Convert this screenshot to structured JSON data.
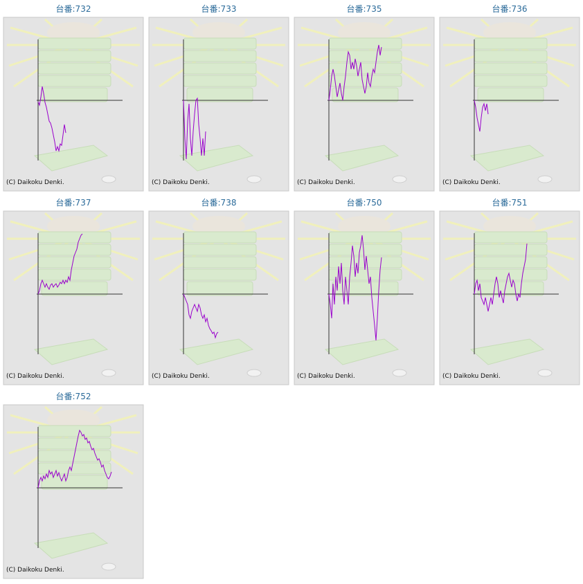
{
  "chart_data": [
    {
      "type": "line",
      "title": "台番:732",
      "copyright": "(C) Daikoku Denki.",
      "color": "#9900cc",
      "xlim": [
        0,
        61
      ],
      "ylim": [
        -87,
        88
      ],
      "values": [
        -2,
        -7,
        5,
        20,
        10,
        -3,
        -10,
        -20,
        -30,
        -33,
        -40,
        -50,
        -60,
        -73,
        -67,
        -73,
        -63,
        -65,
        -50,
        -35,
        -47
      ]
    },
    {
      "type": "line",
      "title": "台番:733",
      "copyright": "(C) Daikoku Denki.",
      "color": "#9900cc",
      "xlim": [
        0,
        61
      ],
      "ylim": [
        -87,
        88
      ],
      "values": [
        0,
        -55,
        -85,
        -30,
        -5,
        -55,
        -80,
        -45,
        -20,
        0,
        3,
        -35,
        -55,
        -80,
        -55,
        -80,
        -45
      ]
    },
    {
      "type": "line",
      "title": "台番:735",
      "copyright": "(C) Daikoku Denki.",
      "color": "#9900cc",
      "xlim": [
        0,
        61
      ],
      "ylim": [
        -87,
        88
      ],
      "values": [
        0,
        15,
        35,
        45,
        35,
        20,
        5,
        15,
        25,
        10,
        0,
        20,
        35,
        55,
        70,
        65,
        45,
        55,
        45,
        60,
        50,
        35,
        45,
        55,
        30,
        20,
        10,
        20,
        40,
        25,
        20,
        35,
        45,
        40,
        55,
        70,
        80,
        65,
        77
      ]
    },
    {
      "type": "line",
      "title": "台番:736",
      "copyright": "(C) Daikoku Denki.",
      "color": "#9900cc",
      "xlim": [
        0,
        61
      ],
      "ylim": [
        -87,
        88
      ],
      "values": [
        0,
        -10,
        -25,
        -35,
        -45,
        -25,
        -10,
        -5,
        -15,
        -5,
        -20
      ]
    },
    {
      "type": "line",
      "title": "台番:737",
      "copyright": "(C) Daikoku Denki.",
      "color": "#9900cc",
      "xlim": [
        0,
        61
      ],
      "ylim": [
        -87,
        88
      ],
      "values": [
        0,
        5,
        15,
        20,
        15,
        10,
        15,
        10,
        7,
        13,
        15,
        10,
        13,
        15,
        10,
        13,
        17,
        15,
        20,
        15,
        20,
        17,
        25,
        20,
        35,
        45,
        55,
        60,
        65,
        75,
        80,
        85,
        87
      ]
    },
    {
      "type": "line",
      "title": "台番:738",
      "copyright": "(C) Daikoku Denki.",
      "color": "#9900cc",
      "xlim": [
        0,
        61
      ],
      "ylim": [
        -87,
        88
      ],
      "values": [
        0,
        -5,
        -10,
        -15,
        -30,
        -35,
        -25,
        -20,
        -15,
        -20,
        -25,
        -15,
        -20,
        -30,
        -35,
        -30,
        -40,
        -35,
        -45,
        -50,
        -53,
        -57,
        -55,
        -63,
        -57,
        -55
      ]
    },
    {
      "type": "line",
      "title": "台番:750",
      "copyright": "(C) Daikoku Denki.",
      "color": "#9900cc",
      "xlim": [
        0,
        61
      ],
      "ylim": [
        -87,
        88
      ],
      "values": [
        0,
        -15,
        -35,
        15,
        -15,
        25,
        5,
        40,
        15,
        45,
        5,
        -15,
        25,
        5,
        -15,
        25,
        45,
        70,
        55,
        25,
        45,
        30,
        60,
        70,
        85,
        65,
        35,
        55,
        35,
        15,
        25,
        -5,
        -25,
        -45,
        -67,
        -35,
        5,
        35,
        53
      ]
    },
    {
      "type": "line",
      "title": "台番:751",
      "copyright": "(C) Daikoku Denki.",
      "color": "#9900cc",
      "xlim": [
        0,
        61
      ],
      "ylim": [
        -87,
        88
      ],
      "values": [
        0,
        15,
        20,
        5,
        15,
        -5,
        -10,
        -15,
        -5,
        -15,
        -25,
        -15,
        -5,
        -15,
        0,
        15,
        25,
        15,
        -5,
        5,
        -5,
        -13,
        5,
        15,
        25,
        30,
        20,
        10,
        20,
        15,
        0,
        -10,
        0,
        -5,
        15,
        30,
        40,
        50,
        73
      ]
    },
    {
      "type": "line",
      "title": "台番:752",
      "copyright": "(C) Daikoku Denki.",
      "color": "#9900cc",
      "xlim": [
        0,
        61
      ],
      "ylim": [
        -87,
        88
      ],
      "values": [
        0,
        10,
        15,
        10,
        17,
        13,
        20,
        15,
        25,
        20,
        23,
        15,
        20,
        25,
        17,
        22,
        15,
        10,
        15,
        20,
        10,
        15,
        25,
        30,
        25,
        35,
        45,
        55,
        65,
        75,
        83,
        80,
        75,
        77,
        70,
        72,
        65,
        67,
        60,
        55,
        57,
        50,
        45,
        40,
        42,
        37,
        30,
        33,
        25,
        20,
        15,
        13,
        17,
        23
      ]
    }
  ]
}
